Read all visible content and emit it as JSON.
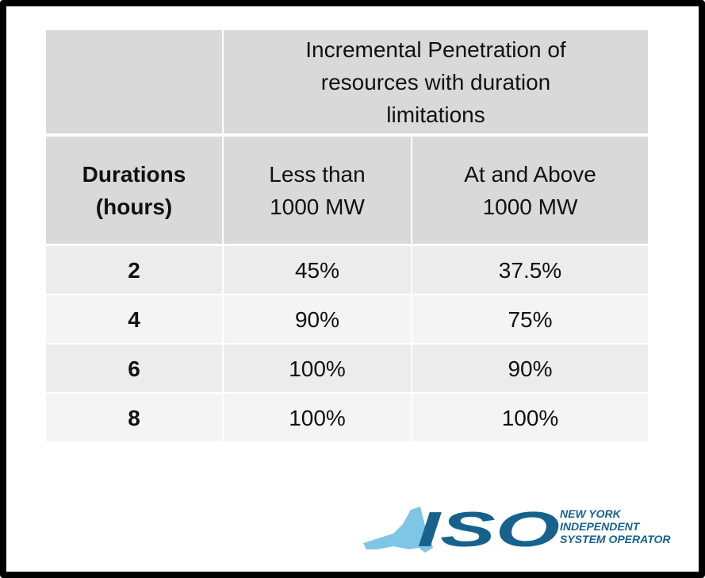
{
  "table": {
    "title": [
      "Incremental Penetration of",
      "resources with duration",
      "limitations"
    ],
    "header": [
      [
        "Durations",
        "(hours)"
      ],
      [
        "Less than",
        "1000 MW"
      ],
      [
        "At and Above",
        "1000 MW"
      ]
    ],
    "rows": [
      [
        "2",
        "45%",
        "37.5%"
      ],
      [
        "4",
        "90%",
        "75%"
      ],
      [
        "6",
        "100%",
        "90%"
      ],
      [
        "8",
        "100%",
        "100%"
      ]
    ]
  },
  "logo": {
    "mark": "ISO",
    "lines": [
      "NEW YORK",
      "INDEPENDENT",
      "SYSTEM OPERATOR"
    ]
  }
}
